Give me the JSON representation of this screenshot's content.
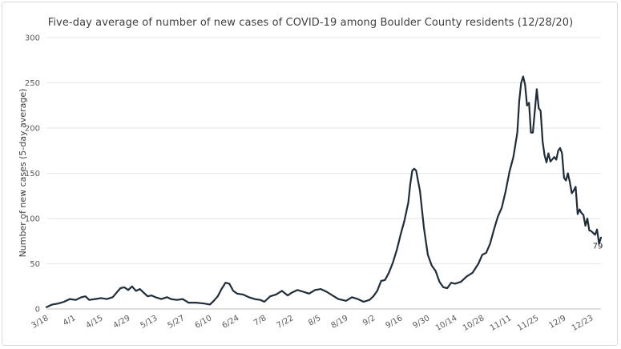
{
  "chart_data": {
    "type": "line",
    "title": "Five-day average of number of new cases of COVID-19 among Boulder County residents (12/28/20)",
    "xlabel": "",
    "ylabel": "Number of new cases (5-day average)",
    "ylim": [
      0,
      300
    ],
    "yticks": [
      0,
      50,
      100,
      150,
      200,
      250,
      300
    ],
    "xlim": [
      "2020-03-18",
      "2020-12-28"
    ],
    "xtick_labels": [
      "3/18",
      "4/1",
      "4/15",
      "4/29",
      "5/13",
      "5/27",
      "6/10",
      "6/24",
      "7/8",
      "7/22",
      "8/5",
      "8/19",
      "9/2",
      "9/16",
      "9/30",
      "10/14",
      "10/28",
      "11/11",
      "11/25",
      "12/9",
      "12/23"
    ],
    "xtick_dates": [
      "2020-03-18",
      "2020-04-01",
      "2020-04-15",
      "2020-04-29",
      "2020-05-13",
      "2020-05-27",
      "2020-06-10",
      "2020-06-24",
      "2020-07-08",
      "2020-07-22",
      "2020-08-05",
      "2020-08-19",
      "2020-09-02",
      "2020-09-16",
      "2020-09-30",
      "2020-10-14",
      "2020-10-28",
      "2020-11-11",
      "2020-11-25",
      "2020-12-09",
      "2020-12-23"
    ],
    "grid": true,
    "line_color": "#1f2d3a",
    "series": [
      {
        "name": "",
        "points": [
          [
            "2020-03-18",
            2
          ],
          [
            "2020-03-21",
            5
          ],
          [
            "2020-03-24",
            6
          ],
          [
            "2020-03-27",
            8
          ],
          [
            "2020-03-30",
            11
          ],
          [
            "2020-04-02",
            10
          ],
          [
            "2020-04-05",
            13
          ],
          [
            "2020-04-07",
            14
          ],
          [
            "2020-04-09",
            10
          ],
          [
            "2020-04-12",
            11
          ],
          [
            "2020-04-15",
            12
          ],
          [
            "2020-04-18",
            11
          ],
          [
            "2020-04-21",
            13
          ],
          [
            "2020-04-23",
            18
          ],
          [
            "2020-04-25",
            23
          ],
          [
            "2020-04-27",
            24
          ],
          [
            "2020-04-29",
            21
          ],
          [
            "2020-05-01",
            25
          ],
          [
            "2020-05-03",
            20
          ],
          [
            "2020-05-05",
            22
          ],
          [
            "2020-05-07",
            18
          ],
          [
            "2020-05-09",
            14
          ],
          [
            "2020-05-11",
            15
          ],
          [
            "2020-05-13",
            13
          ],
          [
            "2020-05-16",
            11
          ],
          [
            "2020-05-19",
            13
          ],
          [
            "2020-05-21",
            11
          ],
          [
            "2020-05-24",
            10
          ],
          [
            "2020-05-27",
            11
          ],
          [
            "2020-05-30",
            7
          ],
          [
            "2020-06-03",
            7
          ],
          [
            "2020-06-07",
            6
          ],
          [
            "2020-06-10",
            5
          ],
          [
            "2020-06-12",
            9
          ],
          [
            "2020-06-14",
            14
          ],
          [
            "2020-06-16",
            22
          ],
          [
            "2020-06-18",
            29
          ],
          [
            "2020-06-20",
            28
          ],
          [
            "2020-06-22",
            20
          ],
          [
            "2020-06-24",
            17
          ],
          [
            "2020-06-27",
            16
          ],
          [
            "2020-06-30",
            13
          ],
          [
            "2020-07-03",
            11
          ],
          [
            "2020-07-06",
            10
          ],
          [
            "2020-07-08",
            8
          ],
          [
            "2020-07-11",
            14
          ],
          [
            "2020-07-14",
            16
          ],
          [
            "2020-07-17",
            20
          ],
          [
            "2020-07-20",
            15
          ],
          [
            "2020-07-22",
            18
          ],
          [
            "2020-07-25",
            21
          ],
          [
            "2020-07-28",
            19
          ],
          [
            "2020-07-31",
            17
          ],
          [
            "2020-08-03",
            21
          ],
          [
            "2020-08-06",
            22
          ],
          [
            "2020-08-09",
            19
          ],
          [
            "2020-08-12",
            15
          ],
          [
            "2020-08-15",
            11
          ],
          [
            "2020-08-19",
            9
          ],
          [
            "2020-08-22",
            13
          ],
          [
            "2020-08-25",
            11
          ],
          [
            "2020-08-28",
            8
          ],
          [
            "2020-08-31",
            10
          ],
          [
            "2020-09-02",
            14
          ],
          [
            "2020-09-04",
            20
          ],
          [
            "2020-09-06",
            31
          ],
          [
            "2020-09-08",
            32
          ],
          [
            "2020-09-10",
            40
          ],
          [
            "2020-09-12",
            51
          ],
          [
            "2020-09-14",
            65
          ],
          [
            "2020-09-16",
            82
          ],
          [
            "2020-09-18",
            98
          ],
          [
            "2020-09-20",
            118
          ],
          [
            "2020-09-21",
            138
          ],
          [
            "2020-09-22",
            153
          ],
          [
            "2020-09-23",
            155
          ],
          [
            "2020-09-24",
            153
          ],
          [
            "2020-09-26",
            130
          ],
          [
            "2020-09-28",
            90
          ],
          [
            "2020-09-30",
            60
          ],
          [
            "2020-10-02",
            48
          ],
          [
            "2020-10-04",
            42
          ],
          [
            "2020-10-06",
            30
          ],
          [
            "2020-10-08",
            24
          ],
          [
            "2020-10-10",
            23
          ],
          [
            "2020-10-12",
            29
          ],
          [
            "2020-10-14",
            28
          ],
          [
            "2020-10-17",
            30
          ],
          [
            "2020-10-20",
            36
          ],
          [
            "2020-10-23",
            40
          ],
          [
            "2020-10-26",
            50
          ],
          [
            "2020-10-28",
            60
          ],
          [
            "2020-10-30",
            62
          ],
          [
            "2020-11-01",
            72
          ],
          [
            "2020-11-03",
            88
          ],
          [
            "2020-11-05",
            102
          ],
          [
            "2020-11-07",
            112
          ],
          [
            "2020-11-09",
            130
          ],
          [
            "2020-11-11",
            152
          ],
          [
            "2020-11-13",
            168
          ],
          [
            "2020-11-15",
            195
          ],
          [
            "2020-11-16",
            230
          ],
          [
            "2020-11-17",
            250
          ],
          [
            "2020-11-18",
            257
          ],
          [
            "2020-11-19",
            248
          ],
          [
            "2020-11-20",
            225
          ],
          [
            "2020-11-21",
            228
          ],
          [
            "2020-11-22",
            195
          ],
          [
            "2020-11-23",
            195
          ],
          [
            "2020-11-25",
            243
          ],
          [
            "2020-11-26",
            222
          ],
          [
            "2020-11-27",
            219
          ],
          [
            "2020-11-28",
            185
          ],
          [
            "2020-11-29",
            170
          ],
          [
            "2020-11-30",
            162
          ],
          [
            "2020-12-01",
            172
          ],
          [
            "2020-12-02",
            163
          ],
          [
            "2020-12-04",
            168
          ],
          [
            "2020-12-05",
            165
          ],
          [
            "2020-12-06",
            175
          ],
          [
            "2020-12-07",
            178
          ],
          [
            "2020-12-08",
            172
          ],
          [
            "2020-12-09",
            145
          ],
          [
            "2020-12-10",
            142
          ],
          [
            "2020-12-11",
            150
          ],
          [
            "2020-12-12",
            140
          ],
          [
            "2020-12-13",
            128
          ],
          [
            "2020-12-14",
            131
          ],
          [
            "2020-12-15",
            135
          ],
          [
            "2020-12-16",
            105
          ],
          [
            "2020-12-17",
            110
          ],
          [
            "2020-12-18",
            106
          ],
          [
            "2020-12-19",
            104
          ],
          [
            "2020-12-20",
            92
          ],
          [
            "2020-12-21",
            100
          ],
          [
            "2020-12-22",
            87
          ],
          [
            "2020-12-23",
            86
          ],
          [
            "2020-12-24",
            84
          ],
          [
            "2020-12-25",
            82
          ],
          [
            "2020-12-26",
            88
          ],
          [
            "2020-12-27",
            72
          ],
          [
            "2020-12-28",
            79
          ]
        ]
      }
    ],
    "data_labels": [
      {
        "x": "2020-12-28",
        "y": 79,
        "text": "79"
      }
    ]
  }
}
